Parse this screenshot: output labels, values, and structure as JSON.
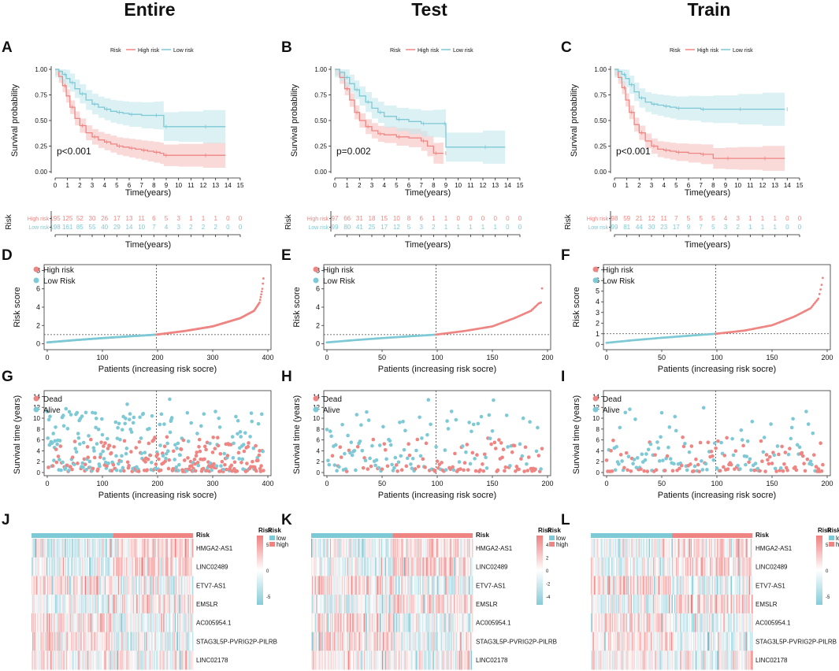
{
  "figure": {
    "columns": [
      "Entire",
      "Test",
      "Train"
    ],
    "panel_letters": [
      "A",
      "B",
      "C",
      "D",
      "E",
      "F",
      "G",
      "H",
      "I",
      "J",
      "K",
      "L"
    ]
  },
  "colors": {
    "high": "#ef8582",
    "low": "#7dc9d5",
    "high_band": "#f6c2c0",
    "low_band": "#c3e7ec",
    "heat_hi": "#f08080",
    "heat_mid": "#ffffff",
    "heat_lo": "#86cbd8"
  },
  "chart_data": [
    {
      "type": "line",
      "panel": "A",
      "column": "Entire",
      "title": "Entire",
      "legend": {
        "title": "Risk",
        "entries": [
          "High risk",
          "Low risk"
        ]
      },
      "xlabel": "Time(years)",
      "ylabel": "Survival probability",
      "xlim": [
        0,
        15
      ],
      "ylim": [
        0,
        1
      ],
      "xticks": [
        0,
        1,
        2,
        3,
        4,
        5,
        6,
        7,
        8,
        9,
        10,
        11,
        12,
        13,
        14,
        15
      ],
      "yticks": [
        "0.00",
        "0.25",
        "0.50",
        "0.75",
        "1.00"
      ],
      "pvalue": "p<0.001",
      "series": [
        {
          "name": "High risk",
          "x": [
            0,
            0.3,
            0.6,
            0.9,
            1.2,
            1.6,
            2,
            2.5,
            3,
            3.5,
            4,
            4.5,
            5,
            5.5,
            6,
            6.5,
            7,
            7.5,
            8,
            8.5,
            8.8,
            10,
            12,
            13.8
          ],
          "y": [
            1,
            0.93,
            0.84,
            0.74,
            0.63,
            0.52,
            0.45,
            0.38,
            0.34,
            0.31,
            0.29,
            0.27,
            0.25,
            0.24,
            0.23,
            0.22,
            0.21,
            0.2,
            0.19,
            0.18,
            0.16,
            0.16,
            0.16,
            0.16
          ]
        },
        {
          "name": "Low risk",
          "x": [
            0,
            0.3,
            0.6,
            0.9,
            1.2,
            1.6,
            2,
            2.5,
            3,
            3.5,
            4,
            4.5,
            5,
            5.5,
            6,
            7,
            8,
            8.5,
            8.8,
            10,
            12,
            13.8
          ],
          "y": [
            1,
            0.98,
            0.95,
            0.91,
            0.87,
            0.81,
            0.76,
            0.7,
            0.66,
            0.63,
            0.61,
            0.59,
            0.58,
            0.57,
            0.56,
            0.55,
            0.55,
            0.55,
            0.44,
            0.44,
            0.44,
            0.44
          ]
        }
      ],
      "risk_table": {
        "title": "Risk",
        "xlabel": "Time(years)",
        "rows": [
          {
            "name": "High risk",
            "counts": [
              "195",
              "125",
              "52",
              "30",
              "26",
              "17",
              "13",
              "11",
              "6",
              "5",
              "3",
              "1",
              "1",
              "1",
              "0",
              "0"
            ]
          },
          {
            "name": "Low risk",
            "counts": [
              "198",
              "161",
              "85",
              "55",
              "40",
              "29",
              "14",
              "10",
              "7",
              "4",
              "3",
              "2",
              "2",
              "2",
              "0",
              "0"
            ]
          }
        ]
      }
    },
    {
      "type": "line",
      "panel": "B",
      "column": "Test",
      "title": "Test",
      "legend": {
        "title": "Risk",
        "entries": [
          "High risk",
          "Low risk"
        ]
      },
      "xlabel": "Time(years)",
      "ylabel": "Survival probability",
      "xlim": [
        0,
        15
      ],
      "ylim": [
        0,
        1
      ],
      "xticks": [
        0,
        1,
        2,
        3,
        4,
        5,
        6,
        7,
        8,
        9,
        10,
        11,
        12,
        13,
        14,
        15
      ],
      "yticks": [
        "0.00",
        "0.25",
        "0.50",
        "0.75",
        "1.00"
      ],
      "pvalue": "p=0.002",
      "series": [
        {
          "name": "High risk",
          "x": [
            0,
            0.4,
            0.8,
            1.2,
            1.6,
            2,
            2.5,
            3,
            3.5,
            4,
            5,
            6,
            7,
            7.5,
            8,
            8.5,
            8.8
          ],
          "y": [
            1,
            0.92,
            0.81,
            0.7,
            0.58,
            0.5,
            0.44,
            0.4,
            0.37,
            0.36,
            0.34,
            0.33,
            0.3,
            0.25,
            0.18,
            0.18,
            0.18
          ]
        },
        {
          "name": "Low risk",
          "x": [
            0,
            0.4,
            0.8,
            1.2,
            1.6,
            2,
            2.5,
            3,
            3.5,
            4,
            5,
            6,
            7,
            8,
            8.7,
            9,
            12,
            13.8
          ],
          "y": [
            1,
            0.97,
            0.92,
            0.86,
            0.8,
            0.74,
            0.68,
            0.62,
            0.58,
            0.54,
            0.51,
            0.49,
            0.47,
            0.47,
            0.47,
            0.24,
            0.24,
            0.24
          ]
        }
      ],
      "risk_table": {
        "title": "Risk",
        "xlabel": "Time(years)",
        "rows": [
          {
            "name": "High risk",
            "counts": [
              "97",
              "66",
              "31",
              "18",
              "15",
              "10",
              "8",
              "6",
              "1",
              "1",
              "0",
              "0",
              "0",
              "0",
              "0",
              "0"
            ]
          },
          {
            "name": "Low risk",
            "counts": [
              "99",
              "80",
              "41",
              "25",
              "17",
              "12",
              "5",
              "3",
              "2",
              "1",
              "1",
              "1",
              "1",
              "1",
              "0",
              "0"
            ]
          }
        ]
      }
    },
    {
      "type": "line",
      "panel": "C",
      "column": "Train",
      "title": "Train",
      "legend": {
        "title": "Risk",
        "entries": [
          "High risk",
          "Low risk"
        ]
      },
      "xlabel": "Time(years)",
      "ylabel": "Survival probability",
      "xlim": [
        0,
        15
      ],
      "ylim": [
        0,
        1
      ],
      "xticks": [
        0,
        1,
        2,
        3,
        4,
        5,
        6,
        7,
        8,
        9,
        10,
        11,
        12,
        13,
        14,
        15
      ],
      "yticks": [
        "0.00",
        "0.25",
        "0.50",
        "0.75",
        "1.00"
      ],
      "pvalue": "p<0.001",
      "series": [
        {
          "name": "High risk",
          "x": [
            0,
            0.3,
            0.6,
            0.9,
            1.2,
            1.6,
            2,
            2.5,
            3,
            3.5,
            4,
            4.5,
            5,
            6,
            7,
            8,
            9,
            10,
            12,
            13.8
          ],
          "y": [
            1,
            0.92,
            0.82,
            0.7,
            0.58,
            0.46,
            0.38,
            0.3,
            0.25,
            0.22,
            0.21,
            0.2,
            0.19,
            0.18,
            0.17,
            0.13,
            0.13,
            0.13,
            0.13,
            0.13
          ]
        },
        {
          "name": "Low risk",
          "x": [
            0,
            0.3,
            0.6,
            0.9,
            1.2,
            1.6,
            2,
            2.5,
            3,
            3.5,
            4,
            4.5,
            5,
            6,
            7,
            8,
            10,
            12,
            13.8
          ],
          "y": [
            1,
            0.98,
            0.95,
            0.91,
            0.85,
            0.78,
            0.72,
            0.68,
            0.66,
            0.65,
            0.64,
            0.63,
            0.62,
            0.62,
            0.61,
            0.61,
            0.61,
            0.61,
            0.61
          ]
        }
      ],
      "risk_table": {
        "title": "Risk",
        "xlabel": "Time(years)",
        "rows": [
          {
            "name": "High risk",
            "counts": [
              "98",
              "59",
              "21",
              "12",
              "11",
              "7",
              "5",
              "5",
              "5",
              "4",
              "3",
              "1",
              "1",
              "1",
              "0",
              "0"
            ]
          },
          {
            "name": "Low risk",
            "counts": [
              "99",
              "81",
              "44",
              "30",
              "23",
              "17",
              "9",
              "7",
              "5",
              "3",
              "2",
              "1",
              "1",
              "1",
              "0",
              "0"
            ]
          }
        ]
      }
    },
    {
      "type": "scatter",
      "panel": "D",
      "column": "Entire",
      "subtype": "risk-score",
      "legend": {
        "entries": [
          "High risk",
          "Low Risk"
        ]
      },
      "xlabel": "Patients (increasing risk socre)",
      "ylabel": "Risk score",
      "n": 393,
      "cutoff_index": 198,
      "cutoff_value": 1.0,
      "xticks": [
        0,
        100,
        200,
        300,
        400
      ],
      "yticks": [
        0,
        2,
        4,
        6,
        8
      ],
      "ylim": [
        -0.3,
        8.3
      ],
      "curve_points": [
        [
          0,
          0.15
        ],
        [
          50,
          0.4
        ],
        [
          100,
          0.62
        ],
        [
          150,
          0.82
        ],
        [
          198,
          1.0
        ],
        [
          250,
          1.4
        ],
        [
          300,
          1.9
        ],
        [
          350,
          2.8
        ],
        [
          375,
          3.6
        ],
        [
          385,
          4.5
        ],
        [
          390,
          6.0
        ],
        [
          393,
          7.7
        ]
      ]
    },
    {
      "type": "scatter",
      "panel": "E",
      "column": "Test",
      "subtype": "risk-score",
      "legend": {
        "entries": [
          "High risk",
          "Low Risk"
        ]
      },
      "xlabel": "Patients (increasing risk socre)",
      "ylabel": "Risk score",
      "n": 196,
      "cutoff_index": 99,
      "cutoff_value": 1.0,
      "xticks": [
        0,
        50,
        100,
        150,
        200
      ],
      "yticks": [
        0,
        2,
        4,
        6,
        8
      ],
      "ylim": [
        -0.3,
        8.3
      ],
      "curve_points": [
        [
          0,
          0.15
        ],
        [
          25,
          0.4
        ],
        [
          50,
          0.62
        ],
        [
          75,
          0.82
        ],
        [
          99,
          1.0
        ],
        [
          125,
          1.4
        ],
        [
          150,
          1.9
        ],
        [
          170,
          2.8
        ],
        [
          185,
          3.6
        ],
        [
          192,
          4.4
        ],
        [
          194,
          4.5
        ],
        [
          196,
          7.6
        ]
      ]
    },
    {
      "type": "scatter",
      "panel": "F",
      "column": "Train",
      "subtype": "risk-score",
      "legend": {
        "entries": [
          "High risk",
          "Low Risk"
        ]
      },
      "xlabel": "Patients (increasing risk socre)",
      "ylabel": "Risk score",
      "n": 197,
      "cutoff_index": 99,
      "cutoff_value": 1.0,
      "xticks": [
        0,
        50,
        100,
        150,
        200
      ],
      "yticks": [
        0,
        1,
        2,
        3,
        4,
        5,
        6,
        7
      ],
      "ylim": [
        -0.2,
        7.2
      ],
      "curve_points": [
        [
          0,
          0.15
        ],
        [
          25,
          0.4
        ],
        [
          50,
          0.62
        ],
        [
          75,
          0.82
        ],
        [
          99,
          1.0
        ],
        [
          125,
          1.3
        ],
        [
          150,
          1.8
        ],
        [
          170,
          2.6
        ],
        [
          185,
          3.4
        ],
        [
          192,
          4.3
        ],
        [
          195,
          5.6
        ],
        [
          197,
          6.9
        ]
      ]
    },
    {
      "type": "scatter",
      "panel": "G",
      "column": "Entire",
      "subtype": "survival-status",
      "legend": {
        "entries": [
          "Dead",
          "Alive"
        ]
      },
      "xlabel": "Patients (increasing risk socre)",
      "ylabel": "Survival time (years)",
      "n": 393,
      "cutoff_index": 198,
      "xticks": [
        0,
        100,
        200,
        300,
        400
      ],
      "yticks": [
        0,
        2,
        4,
        6,
        8,
        10,
        12,
        14
      ],
      "ylim": [
        0,
        14.5
      ]
    },
    {
      "type": "scatter",
      "panel": "H",
      "column": "Test",
      "subtype": "survival-status",
      "legend": {
        "entries": [
          "Dead",
          "Alive"
        ]
      },
      "xlabel": "Patients (increasing risk socre)",
      "ylabel": "Survival time (years)",
      "n": 196,
      "cutoff_index": 99,
      "xticks": [
        0,
        50,
        100,
        150,
        200
      ],
      "yticks": [
        0,
        2,
        4,
        6,
        8,
        10,
        12,
        14
      ],
      "ylim": [
        0,
        14.5
      ]
    },
    {
      "type": "scatter",
      "panel": "I",
      "column": "Train",
      "subtype": "survival-status",
      "legend": {
        "entries": [
          "Dead",
          "Alive"
        ]
      },
      "xlabel": "Patients (increasing risk socre)",
      "ylabel": "Survival time (years)",
      "n": 197,
      "cutoff_index": 99,
      "xticks": [
        0,
        50,
        100,
        150,
        200
      ],
      "yticks": [
        0,
        2,
        4,
        6,
        8,
        10,
        12,
        14
      ],
      "ylim": [
        0,
        14.5
      ]
    },
    {
      "type": "heatmap",
      "panel": "J",
      "column": "Entire",
      "annotation_label": "Risk",
      "genes": [
        "HMGA2-AS1",
        "LINC02489",
        "ETV7-AS1",
        "EMSLR",
        "AC005954.1",
        "STAG3L5P-PVRIG2P-PILRB",
        "LINC02178"
      ],
      "legend": {
        "title": "Risk",
        "entries": [
          "low",
          "high"
        ]
      },
      "scale": {
        "ticks": [
          "5",
          "0",
          "-5"
        ]
      },
      "n": 393,
      "low_fraction": 0.504
    },
    {
      "type": "heatmap",
      "panel": "K",
      "column": "Test",
      "annotation_label": "Risk",
      "genes": [
        "HMGA2-AS1",
        "LINC02489",
        "ETV7-AS1",
        "EMSLR",
        "AC005954.1",
        "STAG3L5P-PVRIG2P-PILRB",
        "LINC02178"
      ],
      "legend": {
        "title": "Risk",
        "entries": [
          "low",
          "high"
        ]
      },
      "scale": {
        "ticks": [
          "4",
          "2",
          "0",
          "-2",
          "-4"
        ]
      },
      "n": 196,
      "low_fraction": 0.505
    },
    {
      "type": "heatmap",
      "panel": "L",
      "column": "Train",
      "annotation_label": "Risk",
      "genes": [
        "HMGA2-AS1",
        "LINC02489",
        "ETV7-AS1",
        "EMSLR",
        "AC005954.1",
        "STAG3L5P-PVRIG2P-PILRB",
        "LINC02178"
      ],
      "legend": {
        "title": "Risk",
        "entries": [
          "low",
          "high"
        ]
      },
      "scale": {
        "ticks": [
          "5",
          "0",
          "-5"
        ]
      },
      "n": 197,
      "low_fraction": 0.503
    }
  ]
}
